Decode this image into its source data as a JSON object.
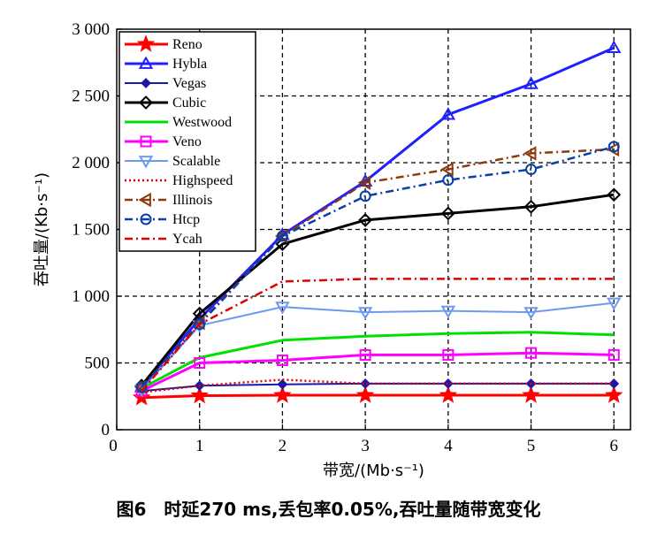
{
  "caption": "图6　时延270 ms,丢包率0.05%,吞吐量随带宽变化",
  "chart_data": {
    "type": "line",
    "xlabel": "带宽/(Mb·s⁻¹)",
    "ylabel": "吞吐量/(Kb·s⁻¹)",
    "x": [
      0.3,
      1,
      2,
      3,
      4,
      5,
      6
    ],
    "xlim": [
      0,
      6.2
    ],
    "ylim": [
      0,
      3000
    ],
    "xticks": [
      "0",
      "1",
      "2",
      "3",
      "4",
      "5",
      "6"
    ],
    "yticks": [
      {
        "value": 0,
        "label": "0"
      },
      {
        "value": 500,
        "label": "500"
      },
      {
        "value": 1000,
        "label": "1 000"
      },
      {
        "value": 1500,
        "label": "1 500"
      },
      {
        "value": 2000,
        "label": "2 000"
      },
      {
        "value": 2500,
        "label": "2 500"
      },
      {
        "value": 3000,
        "label": "3 000"
      }
    ],
    "grid": true,
    "legend_position": "top-left",
    "series": [
      {
        "name": "Reno",
        "color": "#ff0000",
        "dash": "solid",
        "width": 3,
        "marker": "star",
        "values": [
          240,
          255,
          258,
          258,
          258,
          258,
          258
        ]
      },
      {
        "name": "Hybla",
        "color": "#1f1fff",
        "dash": "solid",
        "width": 3,
        "marker": "triangle-up",
        "values": [
          320,
          830,
          1460,
          1860,
          2360,
          2590,
          2860
        ]
      },
      {
        "name": "Vegas",
        "color": "#1a1aa6",
        "dash": "solid",
        "width": 2,
        "marker": "diamond-small",
        "values": [
          290,
          330,
          340,
          345,
          345,
          345,
          345
        ]
      },
      {
        "name": "Cubic",
        "color": "#000000",
        "dash": "solid",
        "width": 3,
        "marker": "diamond",
        "values": [
          330,
          870,
          1390,
          1570,
          1620,
          1670,
          1760
        ]
      },
      {
        "name": "Westwood",
        "color": "#00e000",
        "dash": "solid",
        "width": 3,
        "marker": "none",
        "values": [
          310,
          540,
          670,
          700,
          720,
          730,
          710
        ]
      },
      {
        "name": "Veno",
        "color": "#ff00ff",
        "dash": "solid",
        "width": 3,
        "marker": "square",
        "values": [
          290,
          500,
          520,
          560,
          560,
          575,
          560
        ]
      },
      {
        "name": "Scalable",
        "color": "#6f99f0",
        "dash": "solid",
        "width": 2,
        "marker": "triangle-down",
        "values": [
          300,
          780,
          920,
          880,
          890,
          880,
          950
        ]
      },
      {
        "name": "Highspeed",
        "color": "#e00000",
        "dash": "dot",
        "width": 2.5,
        "marker": "none",
        "values": [
          280,
          330,
          375,
          345,
          345,
          345,
          345
        ]
      },
      {
        "name": "Illinois",
        "color": "#8b3a0e",
        "dash": "dashdot",
        "width": 2.5,
        "marker": "triangle-left",
        "values": [
          320,
          800,
          1450,
          1850,
          1950,
          2070,
          2100
        ]
      },
      {
        "name": "Htcp",
        "color": "#0a3fa8",
        "dash": "dashdot",
        "width": 2.5,
        "marker": "circle",
        "values": [
          320,
          790,
          1450,
          1750,
          1870,
          1950,
          2120
        ]
      },
      {
        "name": "Ycah",
        "color": "#e00000",
        "dash": "dashdot",
        "width": 2.5,
        "marker": "none",
        "values": [
          290,
          790,
          1110,
          1130,
          1130,
          1130,
          1130
        ]
      }
    ]
  }
}
